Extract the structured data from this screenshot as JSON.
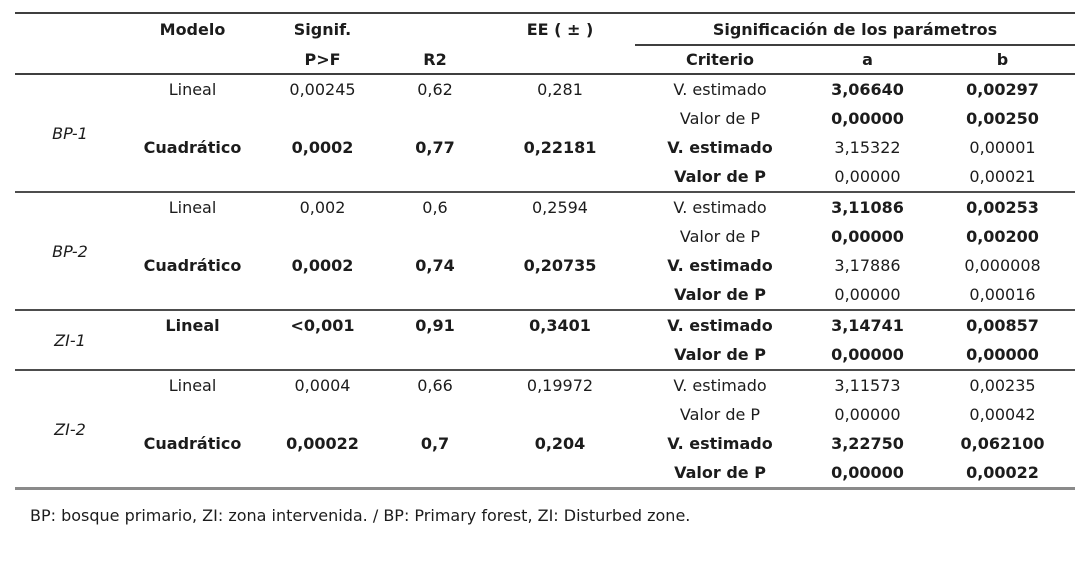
{
  "table": {
    "headers": {
      "modelo": "Modelo",
      "signif_line1": "Signif.",
      "signif_line2": "P>F",
      "r2": "R2",
      "ee": "EE ( ± )",
      "sig_params": "Significación de los parámetros",
      "criterio": "Criterio",
      "a": "a",
      "b": "b"
    },
    "groups": [
      {
        "zone": "BP-1",
        "models": [
          {
            "name": "Lineal",
            "bold": false,
            "signif": "0,00245",
            "r2": "0,62",
            "ee": "0,281",
            "rows": [
              {
                "criterio": "V. estimado",
                "crit_bold": false,
                "a": "3,06640",
                "b": "0,00297",
                "ab_bold": true
              },
              {
                "criterio": "Valor de P",
                "crit_bold": false,
                "a": "0,00000",
                "b": "0,00250",
                "ab_bold": true
              }
            ]
          },
          {
            "name": "Cuadrático",
            "bold": true,
            "signif": "0,0002",
            "r2": "0,77",
            "ee": "0,22181",
            "rows": [
              {
                "criterio": "V. estimado",
                "crit_bold": true,
                "a": "3,15322",
                "b": "0,00001",
                "ab_bold": false
              },
              {
                "criterio": "Valor de P",
                "crit_bold": true,
                "a": "0,00000",
                "b": "0,00021",
                "ab_bold": false
              }
            ]
          }
        ]
      },
      {
        "zone": "BP-2",
        "models": [
          {
            "name": "Lineal",
            "bold": false,
            "signif": "0,002",
            "r2": "0,6",
            "ee": "0,2594",
            "rows": [
              {
                "criterio": "V. estimado",
                "crit_bold": false,
                "a": "3,11086",
                "b": "0,00253",
                "ab_bold": true
              },
              {
                "criterio": "Valor de P",
                "crit_bold": false,
                "a": "0,00000",
                "b": "0,00200",
                "ab_bold": true
              }
            ]
          },
          {
            "name": "Cuadrático",
            "bold": true,
            "signif": "0,0002",
            "r2": "0,74",
            "ee": "0,20735",
            "rows": [
              {
                "criterio": "V. estimado",
                "crit_bold": true,
                "a": "3,17886",
                "b": "0,000008",
                "ab_bold": false
              },
              {
                "criterio": "Valor de P",
                "crit_bold": true,
                "a": "0,00000",
                "b": "0,00016",
                "ab_bold": false
              }
            ]
          }
        ]
      },
      {
        "zone": "ZI-1",
        "models": [
          {
            "name": "Lineal",
            "bold": true,
            "signif": "<0,001",
            "r2": "0,91",
            "ee": "0,3401",
            "rows": [
              {
                "criterio": "V. estimado",
                "crit_bold": true,
                "a": "3,14741",
                "b": "0,00857",
                "ab_bold": true
              },
              {
                "criterio": "Valor de P",
                "crit_bold": true,
                "a": "0,00000",
                "b": "0,00000",
                "ab_bold": true
              }
            ]
          }
        ]
      },
      {
        "zone": "ZI-2",
        "models": [
          {
            "name": "Lineal",
            "bold": false,
            "signif": "0,0004",
            "r2": "0,66",
            "ee": "0,19972",
            "rows": [
              {
                "criterio": "V. estimado",
                "crit_bold": false,
                "a": "3,11573",
                "b": "0,00235",
                "ab_bold": false
              },
              {
                "criterio": "Valor de P",
                "crit_bold": false,
                "a": "0,00000",
                "b": "0,00042",
                "ab_bold": false
              }
            ]
          },
          {
            "name": "Cuadrático",
            "bold": true,
            "signif": "0,00022",
            "r2": "0,7",
            "ee": "0,204",
            "rows": [
              {
                "criterio": "V. estimado",
                "crit_bold": true,
                "a": "3,22750",
                "b": "0,062100",
                "ab_bold": true
              },
              {
                "criterio": "Valor de P",
                "crit_bold": true,
                "a": "0,00000",
                "b": "0,00022",
                "ab_bold": true
              }
            ]
          }
        ]
      }
    ]
  },
  "footnote": "BP: bosque primario, ZI: zona intervenida. / BP: Primary forest, ZI: Disturbed zone."
}
